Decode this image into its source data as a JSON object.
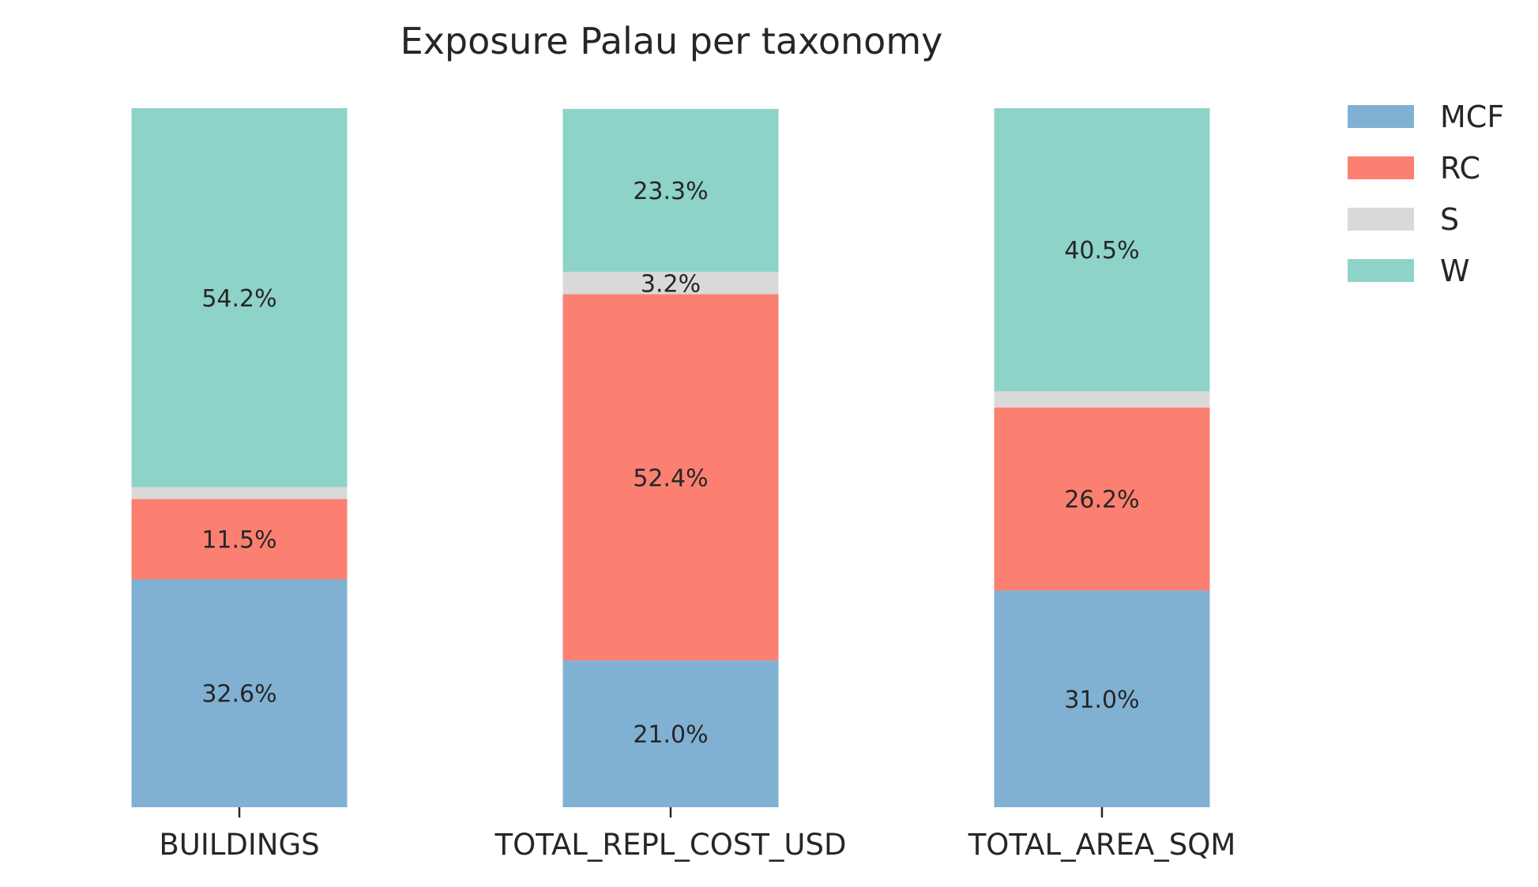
{
  "chart_data": {
    "type": "bar",
    "stacked": true,
    "title": "Exposure Palau per taxonomy",
    "xlabel": "",
    "ylabel": "",
    "ylim": [
      0,
      100
    ],
    "grid": false,
    "legend_position": "top-right",
    "categories": [
      "BUILDINGS",
      "TOTAL_REPL_COST_USD",
      "TOTAL_AREA_SQM"
    ],
    "series": [
      {
        "name": "MCF",
        "color": "#80b1d3",
        "values": [
          32.6,
          21.0,
          31.0
        ]
      },
      {
        "name": "RC",
        "color": "#fb8072",
        "values": [
          11.5,
          52.4,
          26.2
        ]
      },
      {
        "name": "S",
        "color": "#d9d9d9",
        "values": [
          1.7,
          3.2,
          2.3
        ]
      },
      {
        "name": "W",
        "color": "#8dd3c7",
        "values": [
          54.2,
          23.3,
          40.5
        ]
      }
    ],
    "data_labels": [
      [
        "32.6%",
        "21.0%",
        "31.0%"
      ],
      [
        "11.5%",
        "52.4%",
        "26.2%"
      ],
      [
        "",
        "3.2%",
        ""
      ],
      [
        "54.2%",
        "23.3%",
        "40.5%"
      ]
    ]
  }
}
